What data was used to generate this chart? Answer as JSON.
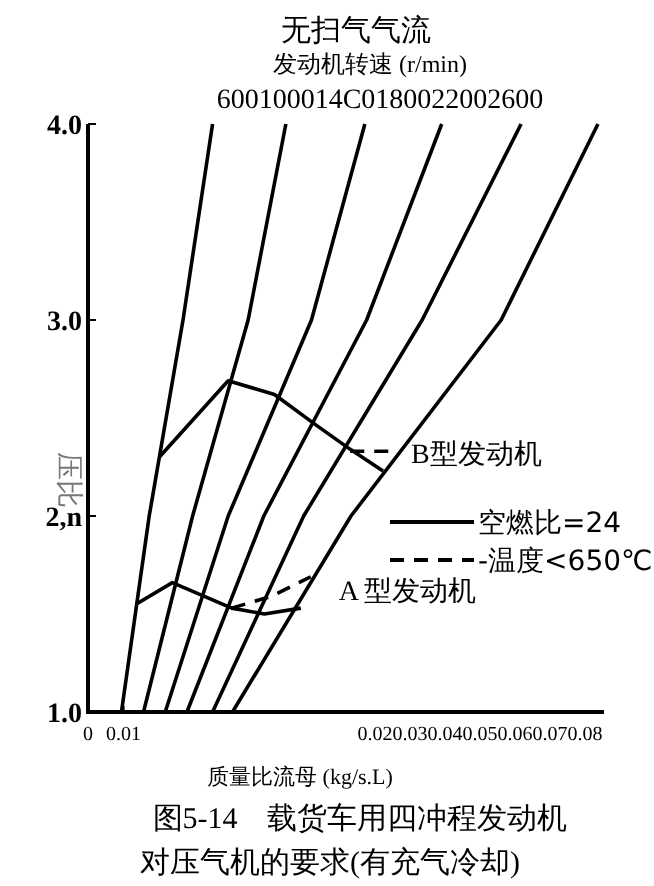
{
  "chart_data": {
    "type": "line",
    "title": "无扫气气流",
    "xlabel": "质量比流母 (kg/s.L)",
    "ylabel": "压比",
    "xlim": [
      0,
      0.145
    ],
    "ylim": [
      1.0,
      4.0
    ],
    "xticks": [
      0,
      0.01
    ],
    "yticks": [
      {
        "value": 1,
        "label": "1.0"
      },
      {
        "value": 2,
        "label": "2,n"
      },
      {
        "value": 3,
        "label": "3.0"
      },
      {
        "value": 4,
        "label": "4.0"
      }
    ],
    "legend": "right",
    "annotations": [
      "发动机转速 (r/min)",
      "600100014C0180022002600",
      "0.020.030.040.050.060.070.08",
      "图5-14　载货车用四冲程发动机",
      "对压气机的要求(有充气冷却)",
      {
        "text": "B型发动机",
        "x": 0.0829,
        "y": 2.23
      },
      {
        "text": "A 型发动机",
        "x": 0.0626,
        "y": 1.53
      }
    ],
    "series": [
      {
        "name": "空燃比=24",
        "color": "#000000",
        "line_style": "solid",
        "x": [
          0.02,
          0.0394,
          0.0524,
          0.0644,
          0.0737,
          0.0829,
          null,
          0.0135,
          0.0237,
          0.0404,
          0.0496,
          0.0598
        ],
        "values": [
          2.3,
          2.69,
          2.62,
          2.46,
          2.34,
          2.23,
          null,
          1.55,
          1.66,
          1.53,
          1.5,
          1.53
        ]
      },
      {
        "name": "-温度<650℃",
        "color": "#000000",
        "line_style": "dashed",
        "x": [
          0.0737,
          0.0848,
          null,
          0.0404,
          0.0515,
          0.0626
        ],
        "values": [
          2.33,
          2.33,
          null,
          1.53,
          1.59,
          1.69
        ]
      },
      {
        "color": "#000000",
        "line_style": "solid",
        "x": [
          0.0094,
          0.0172,
          0.0267,
          0.035,
          null,
          0.0156,
          0.0294,
          0.045,
          0.0556,
          null,
          0.0217,
          0.0394,
          0.0628,
          0.0778,
          null,
          0.0278,
          0.0494,
          0.0783,
          0.0994,
          null,
          0.035,
          0.0606,
          0.0939,
          0.1217,
          null,
          0.0406,
          0.0739,
          0.1161,
          0.1433
        ],
        "values": [
          1.0,
          2.0,
          3.0,
          4.0,
          null,
          1.0,
          2.0,
          3.0,
          4.0,
          null,
          1.0,
          2.0,
          3.0,
          4.0,
          null,
          1.0,
          2.0,
          3.0,
          4.0,
          null,
          1.0,
          2.0,
          3.0,
          4.0,
          null,
          1.0,
          2.0,
          3.0,
          4.0
        ]
      }
    ]
  }
}
